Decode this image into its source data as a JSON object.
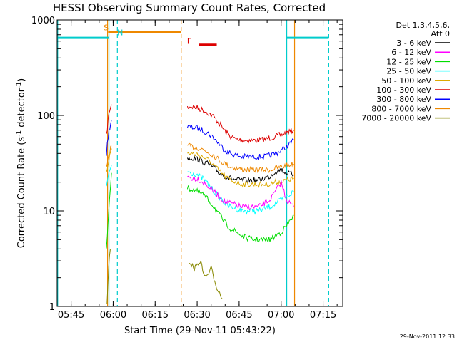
{
  "chart_data": {
    "type": "line",
    "title": "HESSI Observing Summary Count Rates, Corrected",
    "xlabel": "Start Time (29-Nov-11 05:43:22)",
    "ylabel_main": "Corrected Count Rate (s",
    "ylabel_sup1": "-1",
    "ylabel_mid": " detector",
    "ylabel_sup2": "-1",
    "ylabel_end": ")",
    "y_scale": "log",
    "ylim": [
      1,
      1000
    ],
    "xlim": [
      "05:40",
      "07:22"
    ],
    "x_ticks": [
      {
        "label": "05:45",
        "t": 345
      },
      {
        "label": "06:00",
        "t": 360
      },
      {
        "label": "06:15",
        "t": 375
      },
      {
        "label": "06:30",
        "t": 390
      },
      {
        "label": "06:45",
        "t": 405
      },
      {
        "label": "07:00",
        "t": 420
      },
      {
        "label": "07:15",
        "t": 435
      }
    ],
    "y_ticks": [
      {
        "label": "1",
        "v": 1
      },
      {
        "label": "10",
        "v": 10
      },
      {
        "label": "100",
        "v": 100
      },
      {
        "label": "1000",
        "v": 1000
      }
    ],
    "legend": {
      "header1": "Det 1,3,4,5,6,",
      "header2": "Att 0",
      "entries": [
        {
          "label": "3 - 6 keV",
          "color": "#000000"
        },
        {
          "label": "6 - 12 keV",
          "color": "#ff00ff"
        },
        {
          "label": "12 - 25 keV",
          "color": "#00dd00"
        },
        {
          "label": "25 - 50 keV",
          "color": "#00ffff"
        },
        {
          "label": "50 - 100 keV",
          "color": "#ddaa00"
        },
        {
          "label": "100 - 300 keV",
          "color": "#dd0000"
        },
        {
          "label": "300 - 800 keV",
          "color": "#0000ff"
        },
        {
          "label": "800 - 7000 keV",
          "color": "#ee8800"
        },
        {
          "label": "7000 - 20000 keV",
          "color": "#888800"
        }
      ]
    },
    "series": [
      {
        "color": "#dd0000",
        "segments": [
          {
            "x": [
              357.6,
              358.2,
              358.8,
              359.4
            ],
            "y": [
              60,
              90,
              115,
              130
            ]
          },
          {
            "x": [
              386.5,
              388,
              390,
              392,
              394,
              396,
              398,
              400,
              402,
              404,
              406,
              408,
              410,
              412,
              414,
              416,
              418,
              420,
              422,
              424.5
            ],
            "y": [
              122,
              124,
              120,
              114,
              106,
              96,
              82,
              68,
              60,
              56,
              55,
              55,
              55,
              55,
              56,
              58,
              60,
              63,
              66,
              70
            ]
          }
        ]
      },
      {
        "color": "#0000ff",
        "segments": [
          {
            "x": [
              357.6,
              358.2,
              358.8,
              359.4
            ],
            "y": [
              40,
              60,
              75,
              90
            ]
          },
          {
            "x": [
              386.5,
              388,
              390,
              392,
              394,
              396,
              398,
              400,
              402,
              404,
              406,
              408,
              410,
              412,
              414,
              416,
              418,
              420,
              422,
              424.5
            ],
            "y": [
              76,
              75,
              74,
              70,
              65,
              58,
              50,
              43,
              40,
              38,
              37,
              37,
              37,
              37,
              37,
              38,
              40,
              43,
              47,
              55
            ]
          }
        ]
      },
      {
        "color": "#ee8800",
        "segments": [
          {
            "x": [
              357.6,
              358.2,
              358.8,
              359.4
            ],
            "y": [
              28,
              36,
              42,
              48
            ]
          },
          {
            "x": [
              386.5,
              388,
              390,
              392,
              394,
              396,
              398,
              400,
              402,
              404,
              406,
              408,
              410,
              412,
              414,
              416,
              418,
              420,
              422,
              424.5
            ],
            "y": [
              48,
              47,
              46,
              44,
              41,
              38,
              34,
              31,
              29,
              28,
              27,
              27,
              27,
              27,
              27,
              27,
              28,
              29,
              30,
              31
            ]
          }
        ]
      },
      {
        "color": "#000000",
        "segments": [
          {
            "x": [
              386.5,
              388,
              390,
              392,
              394,
              396,
              398,
              400,
              402,
              404,
              406,
              408,
              410,
              412,
              414,
              416,
              418,
              420,
              422,
              424.5
            ],
            "y": [
              36,
              36,
              35,
              33,
              31,
              28,
              25,
              23,
              22,
              21,
              21,
              21,
              21,
              21,
              22,
              23,
              26,
              27,
              25,
              24
            ]
          }
        ]
      },
      {
        "color": "#ddaa00",
        "segments": [
          {
            "x": [
              357.6,
              358.2,
              358.8,
              359.4
            ],
            "y": [
              26,
              32,
              38,
              45
            ]
          },
          {
            "x": [
              386.5,
              388,
              390,
              392,
              394,
              396,
              398,
              400,
              402,
              404,
              406,
              408,
              410,
              412,
              414,
              416,
              418,
              420,
              422,
              424.5
            ],
            "y": [
              40,
              40,
              39,
              37,
              34,
              30,
              26,
              23,
              21,
              20,
              19,
              19,
              19,
              19,
              19,
              19,
              20,
              20,
              21,
              22
            ]
          }
        ]
      },
      {
        "color": "#00ffff",
        "segments": [
          {
            "x": [
              357.6,
              358.2,
              358.8,
              359.4
            ],
            "y": [
              18,
              22,
              26,
              30
            ]
          },
          {
            "x": [
              386.5,
              388,
              390,
              392,
              394,
              396,
              398,
              400,
              402,
              404,
              406,
              408,
              410,
              412,
              414,
              416,
              418,
              420,
              422,
              424.5
            ],
            "y": [
              26,
              25,
              24,
              22,
              19,
              16,
              14,
              12,
              11,
              10.5,
              10,
              10,
              10,
              10,
              10.5,
              11,
              12,
              13,
              14,
              16
            ]
          }
        ]
      },
      {
        "color": "#ff00ff",
        "segments": [
          {
            "x": [
              386.5,
              388,
              390,
              392,
              394,
              396,
              398,
              400,
              402,
              404,
              406,
              408,
              410,
              412,
              414,
              416,
              418,
              420,
              422,
              424.5
            ],
            "y": [
              23,
              22,
              22,
              20,
              18,
              16,
              14,
              12.5,
              12,
              11.5,
              11,
              11,
              11,
              11,
              12,
              13,
              16,
              20,
              13,
              11
            ]
          }
        ]
      },
      {
        "color": "#00dd00",
        "segments": [
          {
            "x": [
              357.6,
              358.2,
              358.8,
              359.4
            ],
            "y": [
              4,
              8,
              15,
              25
            ]
          },
          {
            "x": [
              386.5,
              388,
              390,
              392,
              394,
              396,
              398,
              400,
              402,
              404,
              406,
              408,
              410,
              412,
              414,
              416,
              418,
              420,
              422,
              424.5
            ],
            "y": [
              17,
              17,
              16,
              15,
              13,
              11,
              9,
              7.5,
              6.5,
              6,
              5.5,
              5.2,
              5,
              5,
              5,
              5,
              5.5,
              6,
              7,
              9
            ]
          }
        ]
      },
      {
        "color": "#888800",
        "segments": [
          {
            "x": [
              357.8,
              358.4,
              359.0
            ],
            "y": [
              1,
              2.5,
              4
            ]
          },
          {
            "x": [
              387,
              389,
              391,
              393,
              395,
              397,
              399
            ],
            "y": [
              3,
              2.5,
              3,
              2,
              2.5,
              1.6,
              1.2
            ]
          }
        ]
      }
    ],
    "vlines": [
      {
        "t": 340.2,
        "color": "#00cccc",
        "dash": false
      },
      {
        "t": 358.5,
        "color": "#00cccc",
        "dash": false
      },
      {
        "t": 361.5,
        "color": "#00cccc",
        "dash": true
      },
      {
        "t": 422,
        "color": "#00cccc",
        "dash": false
      },
      {
        "t": 437,
        "color": "#00cccc",
        "dash": true
      },
      {
        "t": 358,
        "color": "#ee8800",
        "dash": false
      },
      {
        "t": 384.3,
        "color": "#ee8800",
        "dash": true
      },
      {
        "t": 424.8,
        "color": "#ee8800",
        "dash": false
      }
    ],
    "bars": [
      {
        "t0": 340.2,
        "t1": 358.5,
        "v": 650,
        "color": "#00cccc"
      },
      {
        "t0": 358.2,
        "t1": 384.3,
        "v": 750,
        "color": "#ee8800"
      },
      {
        "t0": 422,
        "t1": 437,
        "v": 650,
        "color": "#00cccc"
      },
      {
        "t0": 390.5,
        "t1": 397,
        "v": 550,
        "color": "#dd0000"
      }
    ],
    "annotations": [
      {
        "text": "S",
        "t": 357.5,
        "v": 780,
        "color": "#ee8800"
      },
      {
        "text": "N",
        "t": 362.5,
        "v": 690,
        "color": "#00cccc"
      },
      {
        "text": "F",
        "t": 387.2,
        "v": 560,
        "color": "#dd0000"
      }
    ]
  },
  "footer": {
    "timestamp": "29-Nov-2011 12:33"
  }
}
